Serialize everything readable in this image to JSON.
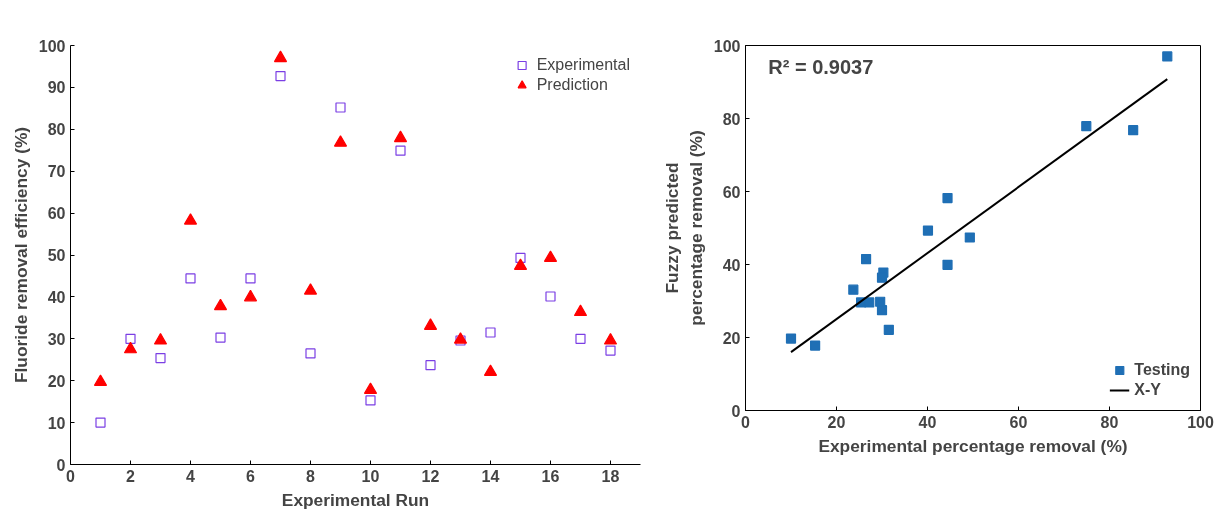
{
  "chart_data": [
    {
      "type": "scatter",
      "xlabel": "Experimental Run",
      "ylabel": "Fluoride removal efficiency (%)",
      "x": [
        1,
        2,
        3,
        4,
        5,
        6,
        7,
        8,
        9,
        10,
        11,
        12,
        13,
        14,
        15,
        16,
        17,
        18
      ],
      "series": [
        {
          "name": "Experimental",
          "color": "#7b3fe4",
          "marker": "square",
          "values": [
            10,
            30,
            25.4,
            44.4,
            30.3,
            44.4,
            92.7,
            26.5,
            85.2,
            15.3,
            74.9,
            23.7,
            29.6,
            31.5,
            49.3,
            40.1,
            30,
            27.2
          ]
        },
        {
          "name": "Prediction",
          "color": "#ff0000",
          "marker": "triangle",
          "values": [
            19.7,
            27.5,
            29.6,
            58.2,
            37.8,
            39.9,
            97,
            41.5,
            76.8,
            17.8,
            77.9,
            33.1,
            29.8,
            22.1,
            47.4,
            49.3,
            36.4,
            29.6
          ]
        }
      ],
      "xlim": [
        0,
        19
      ],
      "xticks": [
        0,
        2,
        4,
        6,
        8,
        10,
        12,
        14,
        16,
        18
      ],
      "ylim": [
        0,
        100
      ],
      "yticks": [
        0,
        10,
        20,
        30,
        40,
        50,
        60,
        70,
        80,
        90,
        100
      ],
      "grid": false,
      "legend": "top right"
    },
    {
      "type": "scatter",
      "xlabel": "Experimental percentage removal (%)",
      "ylabel": "Fuzzy predicted\npercentage removal (%)",
      "annotations": [
        "R² = 0.9037"
      ],
      "series": [
        {
          "name": "Testing",
          "color": "#1f6fb5",
          "marker": "square",
          "x": [
            10,
            15.3,
            23.7,
            25.4,
            27.2,
            26.5,
            30,
            30.3,
            29.6,
            30,
            31.5,
            40.1,
            44.4,
            44.4,
            49.3,
            74.9,
            85.2,
            92.7
          ],
          "values": [
            19.7,
            17.8,
            33.1,
            29.6,
            29.6,
            41.5,
            27.5,
            37.8,
            29.8,
            36.4,
            22.1,
            49.3,
            58.2,
            39.9,
            47.4,
            77.9,
            76.8,
            97
          ]
        },
        {
          "name": "X-Y",
          "type": "line",
          "color": "#000000",
          "x": [
            10,
            92.7
          ],
          "values": [
            16,
            90.8
          ]
        }
      ],
      "xlim": [
        0,
        100
      ],
      "xticks": [
        0,
        20,
        40,
        60,
        80,
        100
      ],
      "ylim": [
        0,
        100
      ],
      "yticks": [
        0,
        20,
        40,
        60,
        80,
        100
      ],
      "grid": false,
      "legend": "bottom right"
    }
  ]
}
